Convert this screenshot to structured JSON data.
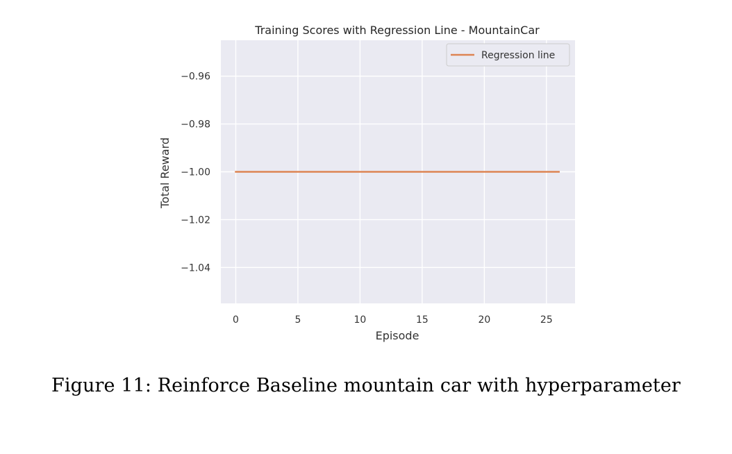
{
  "figure": {
    "caption": "Figure 11: Reinforce Baseline mountain car with hyperparameter"
  },
  "colors": {
    "plot_background": "#eaeaf2",
    "grid": "#ffffff",
    "line": "#dd8452",
    "text": "#333333"
  },
  "chart_data": {
    "type": "line",
    "title": "Training Scores with Regression Line - MountainCar",
    "xlabel": "Episode",
    "ylabel": "Total Reward",
    "xlim": [
      -1.2,
      27.3
    ],
    "ylim": [
      -1.055,
      -0.945
    ],
    "xticks": [
      0,
      5,
      10,
      15,
      20,
      25
    ],
    "xtick_labels": [
      "0",
      "5",
      "10",
      "15",
      "20",
      "25"
    ],
    "yticks": [
      -0.96,
      -0.98,
      -1.0,
      -1.02,
      -1.04
    ],
    "ytick_labels": [
      "−0.96",
      "−0.98",
      "−1.00",
      "−1.02",
      "−1.04"
    ],
    "grid": true,
    "legend_position": "top-right",
    "series": [
      {
        "name": "Regression line",
        "x": [
          0,
          26
        ],
        "y": [
          -1.0,
          -1.0
        ]
      }
    ]
  }
}
